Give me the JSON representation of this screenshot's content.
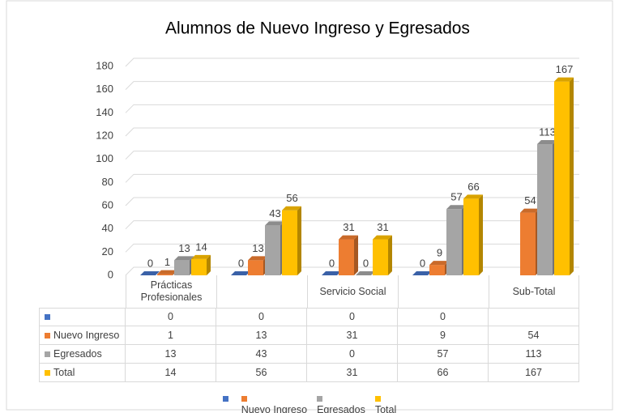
{
  "chart_data": {
    "type": "bar3d",
    "title": "Alumnos de Nuevo Ingreso y Egresados",
    "categories": [
      "Prácticas Profesionales",
      null,
      "Servicio Social",
      null,
      "Sub-Total"
    ],
    "series": [
      {
        "name": null,
        "color": "#4472c4",
        "values": [
          0,
          0,
          0,
          0,
          null
        ]
      },
      {
        "name": "Nuevo Ingreso",
        "color": "#ed7d31",
        "values": [
          1,
          13,
          31,
          9,
          54
        ]
      },
      {
        "name": "Egresados",
        "color": "#a5a5a5",
        "values": [
          13,
          43,
          0,
          57,
          113
        ]
      },
      {
        "name": "Total",
        "color": "#ffc000",
        "values": [
          14,
          56,
          31,
          66,
          167
        ]
      }
    ],
    "ylim": [
      0,
      180
    ],
    "yticks": [
      0,
      20,
      40,
      60,
      80,
      100,
      120,
      140,
      160,
      180
    ],
    "grid": true,
    "data_table": true,
    "legend": "bottom"
  }
}
